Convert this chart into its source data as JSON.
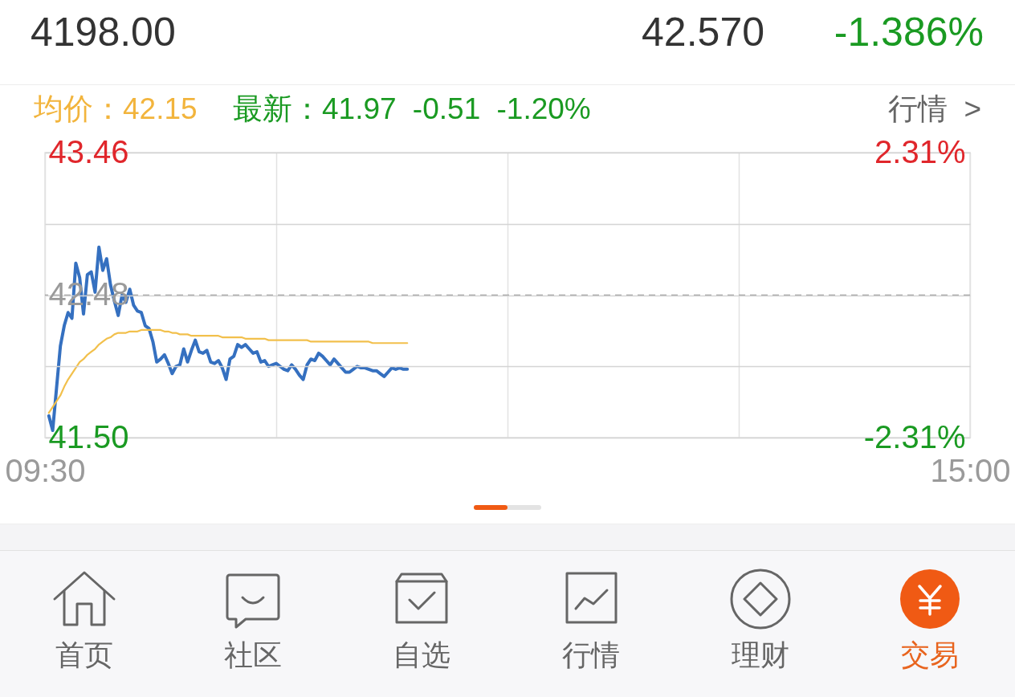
{
  "chart_data": {
    "type": "line",
    "categories": [
      "09:30",
      null,
      null,
      null,
      null,
      null,
      null,
      null,
      null,
      null,
      null,
      null,
      null,
      null,
      null,
      null,
      null,
      null,
      null,
      null,
      null,
      null,
      null,
      null,
      null,
      null,
      null,
      null,
      null,
      null,
      null,
      null,
      null,
      null,
      null,
      null,
      null,
      null,
      null,
      null,
      null,
      null,
      null,
      null,
      null,
      null,
      null,
      null,
      null,
      null,
      null,
      null,
      null,
      null,
      null,
      null,
      null,
      null,
      null,
      null,
      null,
      null,
      null,
      null,
      null,
      null,
      null,
      null,
      null,
      null,
      null,
      null,
      null,
      null,
      null,
      null,
      null,
      null,
      null,
      null,
      null,
      null,
      null,
      null,
      null,
      null,
      null,
      null,
      null,
      null,
      null,
      null,
      null,
      null,
      null,
      null,
      null,
      null,
      null,
      null,
      null,
      null,
      null,
      null,
      null,
      null,
      null,
      null,
      null,
      null,
      null,
      null,
      null,
      null,
      null,
      null,
      null,
      null,
      null,
      null,
      null,
      null,
      null,
      null,
      null,
      null,
      null,
      null,
      null,
      null,
      null,
      null,
      null,
      null,
      null,
      null,
      null,
      null,
      null,
      null,
      null,
      null,
      null,
      null,
      null,
      null,
      null,
      null,
      null,
      null,
      null,
      null,
      null,
      null,
      null,
      null,
      null,
      null,
      null,
      null,
      null,
      null,
      null,
      null,
      null,
      null,
      null,
      null,
      null,
      null,
      null,
      null,
      null,
      null,
      null,
      null,
      null,
      null,
      null,
      null,
      null,
      null,
      null,
      null,
      null,
      null,
      null,
      null,
      null,
      null,
      null,
      null,
      null,
      null,
      null,
      null,
      null,
      null,
      null,
      null,
      null,
      null,
      null,
      null,
      null,
      null,
      null,
      null,
      null,
      null,
      null,
      null,
      null,
      null,
      null,
      null,
      null,
      null,
      null,
      null,
      null,
      null,
      null,
      null,
      null,
      null,
      null,
      null,
      null,
      null,
      null,
      null,
      null,
      null,
      null,
      null,
      null,
      null,
      null,
      null,
      "15:00"
    ],
    "ylim": [
      41.5,
      43.46
    ],
    "yticks": [
      43.46,
      {
        "value": 42.97,
        "label": null
      },
      42.48,
      {
        "value": 41.99,
        "label": null
      },
      {
        "value": 41.5,
        "label": "41.50"
      }
    ],
    "y2lim": [
      -2.31,
      2.31
    ],
    "y2ticks": [
      {
        "value": 2.31,
        "label": "2.31%"
      },
      {
        "value": -2.31,
        "label": "-2.31%"
      }
    ],
    "grid": true,
    "ref_lines": [
      {
        "axis": "y2",
        "value": 0,
        "color": "#9a9a9a",
        "line_style": "dashed"
      }
    ],
    "series": [
      {
        "color": "#3570c0",
        "values": [
          null,
          41.65,
          41.55,
          41.84,
          42.13,
          42.27,
          42.36,
          42.32,
          42.7,
          42.6,
          42.35,
          42.62,
          42.64,
          42.5,
          42.81,
          42.65,
          42.73,
          42.55,
          42.44,
          42.34,
          42.48,
          42.43,
          42.52,
          42.41,
          42.37,
          42.36,
          42.27,
          42.25,
          42.16,
          42.02,
          42.04,
          42.07,
          42.01,
          41.94,
          41.99,
          42.0,
          42.11,
          42.02,
          42.1,
          42.17,
          42.09,
          42.08,
          42.1,
          42.02,
          42.01,
          42.03,
          41.98,
          41.9,
          42.04,
          42.06,
          42.14,
          42.12,
          42.14,
          42.11,
          42.08,
          42.09,
          42.02,
          42.03,
          41.99,
          42.0,
          42.01,
          41.99,
          41.97,
          41.96,
          42.0,
          41.97,
          41.93,
          41.9,
          42.0,
          42.04,
          42.03,
          42.08,
          42.06,
          42.03,
          42.0,
          42.04,
          42.01,
          41.98,
          41.95,
          41.95,
          41.97,
          41.99,
          41.98,
          41.98,
          41.97,
          41.96,
          41.96,
          41.94,
          41.92,
          41.95,
          41.98,
          41.97,
          41.98,
          41.97,
          41.97,
          null,
          null,
          null,
          null,
          null,
          null,
          null,
          null,
          null,
          null,
          null,
          null,
          null,
          null,
          null,
          null,
          null,
          null,
          null,
          null,
          null,
          null,
          null,
          null,
          null,
          null,
          null,
          null,
          null,
          null,
          null,
          null,
          null,
          null,
          null,
          null,
          null,
          null,
          null,
          null,
          null,
          null,
          null,
          null,
          null,
          null,
          null,
          null,
          null,
          null,
          null,
          null,
          null,
          null,
          null,
          null,
          null,
          null,
          null,
          null,
          null,
          null,
          null,
          null,
          null,
          null,
          null,
          null,
          null,
          null,
          null,
          null,
          null,
          null,
          null,
          null,
          null,
          null,
          null,
          null,
          null,
          null,
          null,
          null,
          null,
          null,
          null,
          null,
          null,
          null,
          null,
          null,
          null,
          null,
          null,
          null,
          null,
          null,
          null,
          null,
          null,
          null,
          null,
          null,
          null,
          null,
          null,
          null,
          null,
          null,
          null,
          null,
          null,
          null,
          null,
          null,
          null,
          null,
          null,
          null,
          null,
          null,
          null,
          null,
          null,
          null,
          null,
          null,
          null,
          null,
          null,
          null,
          null,
          null,
          null,
          null,
          null,
          null,
          null,
          null,
          null,
          null,
          null,
          null,
          null,
          null
        ]
      },
      {
        "color": "#f2c04c",
        "values": [
          null,
          41.67,
          41.71,
          41.75,
          41.79,
          41.85,
          41.9,
          41.94,
          41.98,
          42.02,
          42.04,
          42.07,
          42.09,
          42.11,
          42.14,
          42.16,
          42.18,
          42.19,
          42.21,
          42.22,
          42.22,
          42.22,
          42.23,
          42.23,
          42.23,
          42.24,
          42.24,
          42.24,
          42.24,
          42.24,
          42.24,
          42.23,
          42.23,
          42.22,
          42.22,
          42.21,
          42.21,
          42.21,
          42.2,
          42.2,
          42.2,
          42.2,
          42.2,
          42.2,
          42.2,
          42.2,
          42.19,
          42.19,
          42.19,
          42.19,
          42.19,
          42.19,
          42.18,
          42.18,
          42.18,
          42.18,
          42.18,
          42.18,
          42.17,
          42.17,
          42.17,
          42.17,
          42.17,
          42.17,
          42.17,
          42.17,
          42.17,
          42.17,
          42.17,
          42.16,
          42.16,
          42.16,
          42.16,
          42.16,
          42.16,
          42.16,
          42.16,
          42.16,
          42.16,
          42.16,
          42.16,
          42.16,
          42.16,
          42.16,
          42.16,
          42.15,
          42.15,
          42.15,
          42.15,
          42.15,
          42.15,
          42.15,
          42.15,
          42.15,
          42.15,
          null,
          null,
          null,
          null,
          null,
          null,
          null,
          null,
          null,
          null,
          null,
          null,
          null,
          null,
          null,
          null,
          null,
          null,
          null,
          null,
          null,
          null,
          null,
          null,
          null,
          null,
          null,
          null,
          null,
          null,
          null,
          null,
          null,
          null,
          null,
          null,
          null,
          null,
          null,
          null,
          null,
          null,
          null,
          null,
          null,
          null,
          null,
          null,
          null,
          null,
          null,
          null,
          null,
          null,
          null,
          null,
          null,
          null,
          null,
          null,
          null,
          null,
          null,
          null,
          null,
          null,
          null,
          null,
          null,
          null,
          null,
          null,
          null,
          null,
          null,
          null,
          null,
          null,
          null,
          null,
          null,
          null,
          null,
          null,
          null,
          null,
          null,
          null,
          null,
          null,
          null,
          null,
          null,
          null,
          null,
          null,
          null,
          null,
          null,
          null,
          null,
          null,
          null,
          null,
          null,
          null,
          null,
          null,
          null,
          null,
          null,
          null,
          null,
          null,
          null,
          null,
          null,
          null,
          null,
          null,
          null,
          null,
          null,
          null,
          null,
          null,
          null,
          null,
          null,
          null,
          null,
          null,
          null,
          null,
          null,
          null,
          null,
          null,
          null,
          null,
          null,
          null,
          null,
          null,
          null,
          null
        ]
      }
    ],
    "annotations": [
      "4198.00",
      "42.570",
      "-1.386%",
      "均价：42.15",
      "最新：41.97 -0.51 -1.20%",
      "行情 >",
      "首页",
      "社区",
      "自选",
      "行情",
      "理财",
      "交易"
    ]
  }
}
